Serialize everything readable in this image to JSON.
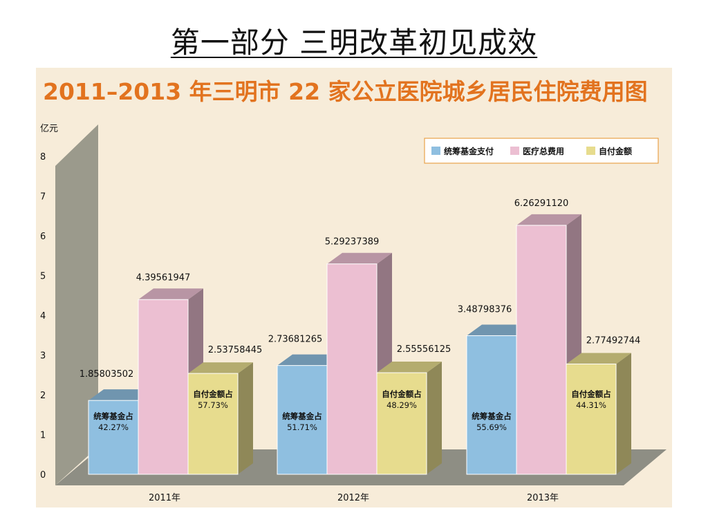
{
  "slide": {
    "title": "第一部分    三明改革初见成效"
  },
  "chart_data": {
    "type": "bar",
    "title": "2011–2013 年三明市 22 家公立医院城乡居民住院费用图",
    "ylabel": "亿元",
    "ylim": [
      0,
      8
    ],
    "yticks": [
      "0",
      "1",
      "2",
      "3",
      "4",
      "5",
      "6",
      "7",
      "8"
    ],
    "categories": [
      "2011年",
      "2012年",
      "2013年"
    ],
    "legend_position": "top-right",
    "series": [
      {
        "name": "统筹基金支付",
        "color": "#8fbfe0",
        "values": [
          1.85803502,
          2.73681265,
          3.48798376
        ],
        "value_labels": [
          "1.85803502",
          "2.73681265",
          "3.48798376"
        ],
        "share_label": "统筹基金占",
        "shares": [
          "42.27%",
          "51.71%",
          "55.69%"
        ]
      },
      {
        "name": "医疗总费用",
        "color": "#ecbfd2",
        "values": [
          4.39561947,
          5.29237389,
          6.2629112
        ],
        "value_labels": [
          "4.39561947",
          "5.29237389",
          "6.26291120"
        ]
      },
      {
        "name": "自付金额",
        "color": "#e7dc8e",
        "values": [
          2.53758445,
          2.55556125,
          2.77492744
        ],
        "value_labels": [
          "2.53758445",
          "2.55556125",
          "2.77492744"
        ],
        "share_label": "自付金额占",
        "shares": [
          "57.73%",
          "48.29%",
          "44.31%"
        ]
      }
    ]
  }
}
